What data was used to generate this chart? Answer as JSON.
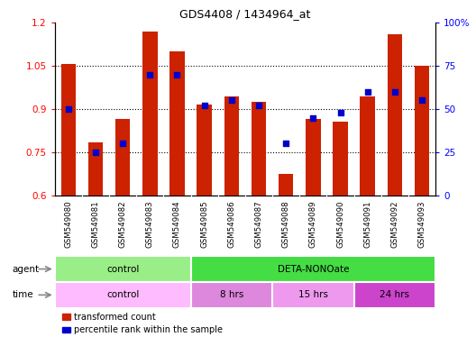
{
  "title": "GDS4408 / 1434964_at",
  "samples": [
    "GSM549080",
    "GSM549081",
    "GSM549082",
    "GSM549083",
    "GSM549084",
    "GSM549085",
    "GSM549086",
    "GSM549087",
    "GSM549088",
    "GSM549089",
    "GSM549090",
    "GSM549091",
    "GSM549092",
    "GSM549093"
  ],
  "bar_values": [
    1.055,
    0.785,
    0.865,
    1.17,
    1.1,
    0.915,
    0.945,
    0.925,
    0.675,
    0.865,
    0.855,
    0.945,
    1.16,
    1.05
  ],
  "percentile_values": [
    50,
    25,
    30,
    70,
    70,
    52,
    55,
    52,
    30,
    45,
    48,
    60,
    60,
    55
  ],
  "bar_color": "#cc2200",
  "dot_color": "#0000cc",
  "ylim_left": [
    0.6,
    1.2
  ],
  "ylim_right": [
    0,
    100
  ],
  "yticks_left": [
    0.6,
    0.75,
    0.9,
    1.05,
    1.2
  ],
  "yticks_right": [
    0,
    25,
    50,
    75,
    100
  ],
  "ytick_labels_right": [
    "0",
    "25",
    "50",
    "75",
    "100%"
  ],
  "agent_groups": [
    {
      "label": "control",
      "start": 0,
      "end": 4,
      "color": "#99ee88"
    },
    {
      "label": "DETA-NONOate",
      "start": 5,
      "end": 13,
      "color": "#44dd44"
    }
  ],
  "time_groups": [
    {
      "label": "control",
      "start": 0,
      "end": 4,
      "color": "#ffbbff"
    },
    {
      "label": "8 hrs",
      "start": 5,
      "end": 7,
      "color": "#dd88dd"
    },
    {
      "label": "15 hrs",
      "start": 8,
      "end": 10,
      "color": "#ee99ee"
    },
    {
      "label": "24 hrs",
      "start": 11,
      "end": 13,
      "color": "#cc44cc"
    }
  ],
  "legend_items": [
    {
      "label": "transformed count",
      "color": "#cc2200"
    },
    {
      "label": "percentile rank within the sample",
      "color": "#0000cc"
    }
  ],
  "bar_width": 0.55,
  "xticklabel_bg": "#cccccc",
  "grid_line_color": "black",
  "grid_linestyle": ":",
  "grid_linewidth": 0.8
}
